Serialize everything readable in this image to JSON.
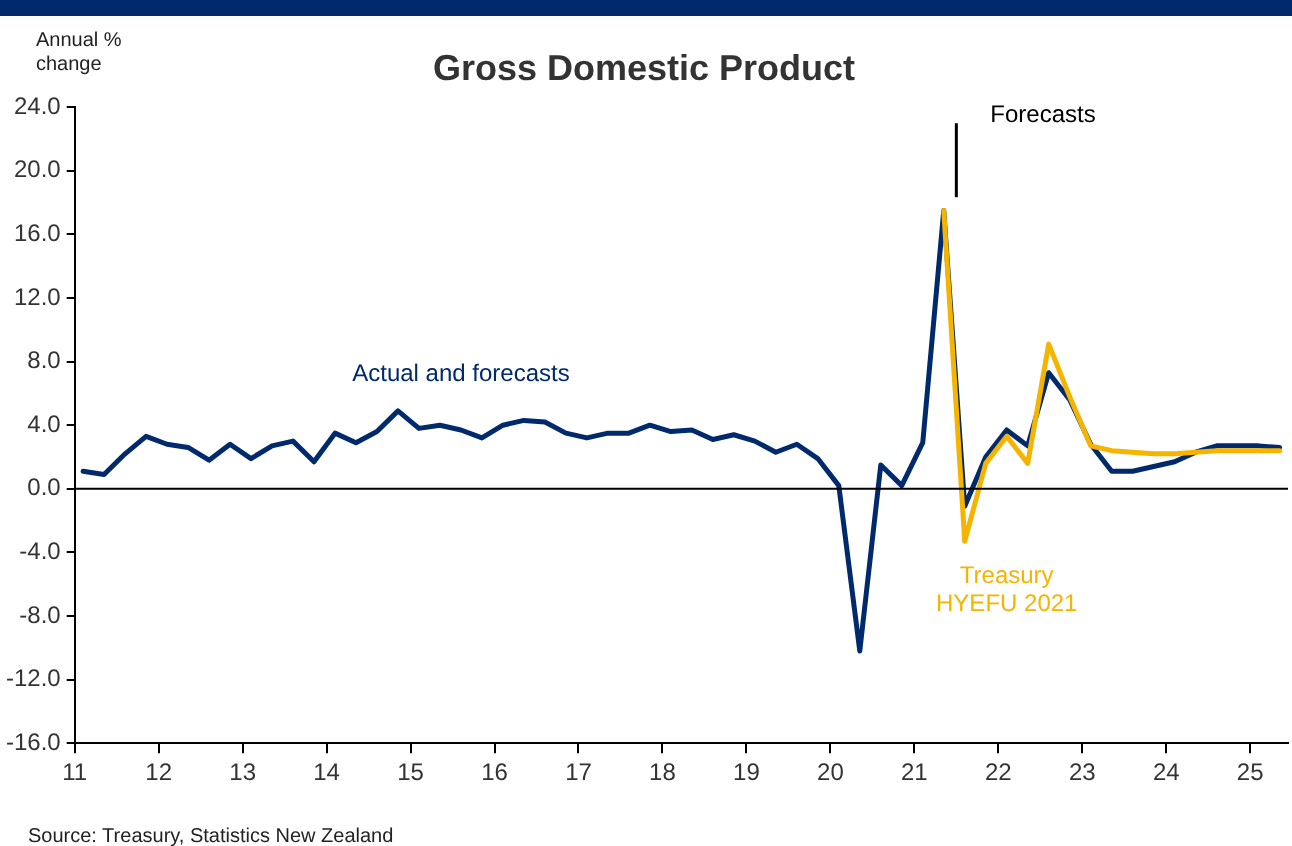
{
  "chart_data": {
    "type": "line",
    "title": "Gross Domestic Product",
    "ylabel": "Annual %\nchange",
    "xlim": [
      11,
      25.45
    ],
    "xticks": [
      11,
      12,
      13,
      14,
      15,
      16,
      17,
      18,
      19,
      20,
      21,
      22,
      23,
      24,
      25
    ],
    "ylim": [
      -16,
      24
    ],
    "yticks": [
      {
        "value": -16,
        "label": "-16.0"
      },
      {
        "value": -12,
        "label": "-12.0"
      },
      {
        "value": -8,
        "label": "-8.0"
      },
      {
        "value": -4,
        "label": "-4.0"
      },
      {
        "value": 0,
        "label": "0.0"
      },
      {
        "value": 4,
        "label": "4.0"
      },
      {
        "value": 8,
        "label": "8.0"
      },
      {
        "value": 12,
        "label": "12.0"
      },
      {
        "value": 16,
        "label": "16.0"
      },
      {
        "value": 20,
        "label": "20.0"
      },
      {
        "value": 24,
        "label": "24.0"
      }
    ],
    "grid": false,
    "legend": false,
    "marker": "none",
    "line_style": "solid",
    "ref_lines": [
      {
        "axis": "y",
        "value": 0,
        "color": "#000000"
      },
      {
        "axis": "x",
        "value": 21.5,
        "label": "Forecasts",
        "color": "#000000"
      }
    ],
    "series": [
      {
        "name": "Treasury HYEFU 2021",
        "color": "#f5b400",
        "x": [
          21.35,
          21.6,
          21.85,
          22.1,
          22.35,
          22.6,
          22.85,
          23.1,
          23.35,
          23.6,
          23.85,
          24.1,
          24.35,
          24.6,
          24.85,
          25.1,
          25.35
        ],
        "values": [
          17.5,
          -3.3,
          1.6,
          3.3,
          1.6,
          9.1,
          5.8,
          2.7,
          2.4,
          2.3,
          2.2,
          2.2,
          2.3,
          2.4,
          2.4,
          2.4,
          2.4
        ]
      },
      {
        "name": "Actual and forecasts",
        "color": "#002a6c",
        "x": [
          11.1,
          11.35,
          11.6,
          11.85,
          12.1,
          12.35,
          12.6,
          12.85,
          13.1,
          13.35,
          13.6,
          13.85,
          14.1,
          14.35,
          14.6,
          14.85,
          15.1,
          15.35,
          15.6,
          15.85,
          16.1,
          16.35,
          16.6,
          16.85,
          17.1,
          17.35,
          17.6,
          17.85,
          18.1,
          18.35,
          18.6,
          18.85,
          19.1,
          19.35,
          19.6,
          19.85,
          20.1,
          20.35,
          20.6,
          20.85,
          21.1,
          21.35,
          21.6,
          21.85,
          22.1,
          22.35,
          22.6,
          22.85,
          23.1,
          23.35,
          23.6,
          23.85,
          24.1,
          24.35,
          24.6,
          24.85,
          25.1,
          25.35
        ],
        "values": [
          1.1,
          0.9,
          2.2,
          3.3,
          2.8,
          2.6,
          1.8,
          2.8,
          1.9,
          2.7,
          3.0,
          1.7,
          3.5,
          2.9,
          3.6,
          4.9,
          3.8,
          4.0,
          3.7,
          3.2,
          4.0,
          4.3,
          4.2,
          3.5,
          3.2,
          3.5,
          3.5,
          4.0,
          3.6,
          3.7,
          3.1,
          3.4,
          3.0,
          2.3,
          2.8,
          1.9,
          0.2,
          -10.2,
          1.5,
          0.2,
          2.9,
          17.5,
          -1.1,
          2.0,
          3.7,
          2.7,
          7.3,
          5.6,
          2.8,
          1.1,
          1.1,
          1.4,
          1.7,
          2.3,
          2.7,
          2.7,
          2.7,
          2.6
        ]
      }
    ],
    "annotations": [
      "Source: Treasury, Statistics New Zealand"
    ]
  }
}
